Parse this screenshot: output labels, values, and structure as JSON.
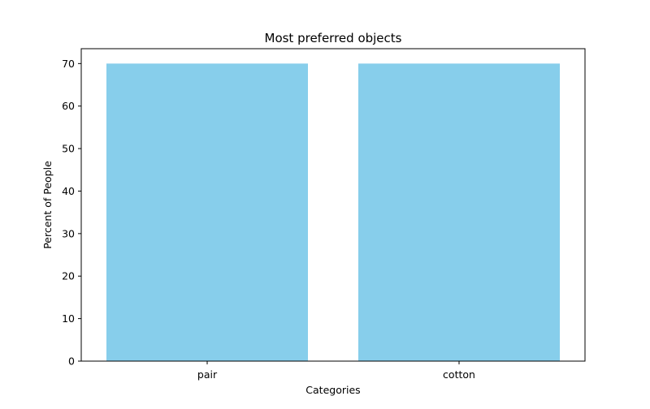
{
  "chart_data": {
    "type": "bar",
    "title": "Most preferred objects",
    "xlabel": "Categories",
    "ylabel": "Percent of People",
    "categories": [
      "pair",
      "cotton"
    ],
    "values": [
      70,
      70
    ],
    "ylim": [
      0,
      73.5
    ],
    "yticks": [
      0,
      10,
      20,
      30,
      40,
      50,
      60,
      70
    ],
    "grid": false,
    "legend": "none",
    "bar_color": "#87ceeb"
  }
}
